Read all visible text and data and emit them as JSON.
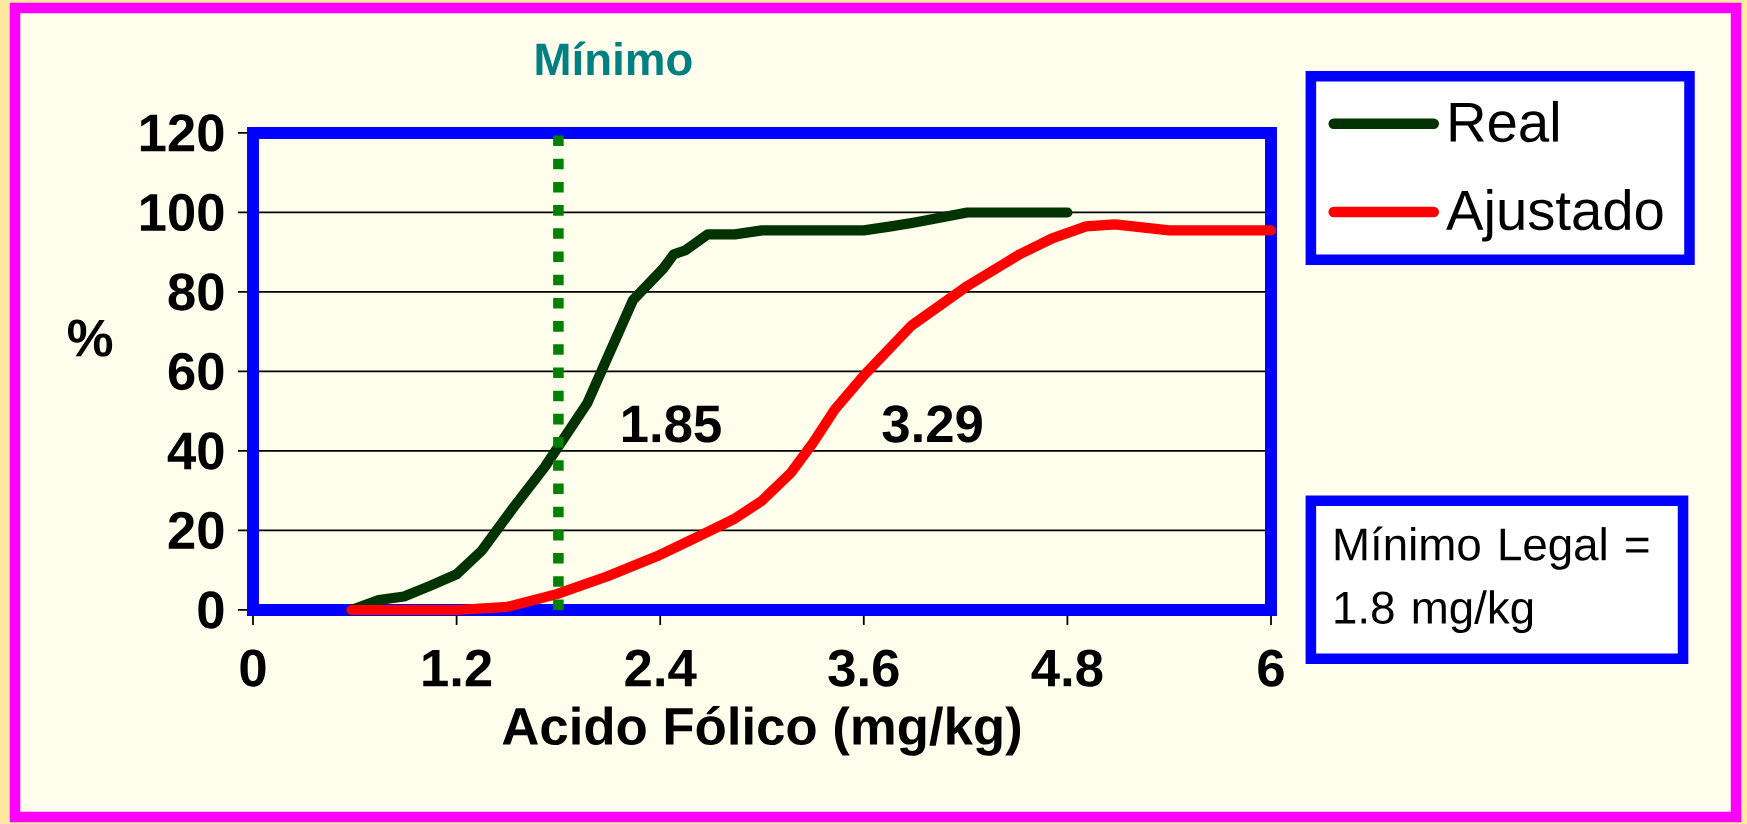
{
  "chart_data": {
    "type": "line",
    "xlabel": "Acido Fólico (mg/kg)",
    "ylabel": "%",
    "series": [
      {
        "name": "Real",
        "color": "#003300",
        "x": [
          0.58,
          0.74,
          0.89,
          1.04,
          1.2,
          1.35,
          1.53,
          1.72,
          1.97,
          2.24,
          2.42,
          2.48,
          2.55,
          2.68,
          2.84,
          3.0,
          3.6,
          3.76,
          3.9,
          4.21,
          4.8
        ],
        "values": [
          0,
          2.5,
          3.4,
          6,
          9,
          15,
          25.5,
          36,
          52,
          78,
          86,
          89.5,
          90.5,
          94.5,
          94.5,
          95.5,
          95.5,
          96.5,
          97.5,
          100,
          100
        ]
      },
      {
        "name": "Ajustado",
        "color": "#ff0000",
        "x": [
          0.58,
          1.2,
          1.5,
          1.79,
          2.09,
          2.38,
          2.65,
          2.84,
          3.0,
          3.17,
          3.3,
          3.43,
          3.6,
          3.88,
          4.21,
          4.52,
          4.71,
          4.91,
          5.08,
          5.4,
          6.0
        ],
        "values": [
          0,
          0,
          0.8,
          4,
          8.5,
          13.5,
          19,
          23,
          27.5,
          34.5,
          42,
          50.5,
          59,
          71.5,
          81.5,
          89.5,
          93.5,
          96.5,
          97,
          95.5,
          95.5
        ]
      }
    ],
    "xlim": [
      0,
      6
    ],
    "xticks": [
      0,
      1.2,
      2.4,
      3.6,
      4.8,
      6
    ],
    "ylim": [
      0,
      120
    ],
    "yticks": [
      0,
      20,
      40,
      60,
      80,
      100,
      120
    ],
    "grid": "y",
    "legend": "top right",
    "ref_lines": [
      {
        "axis": "x",
        "value": 1.8,
        "label": "Mínimo",
        "color": "#008000",
        "line_style": "dotted"
      }
    ],
    "annotations": [
      "1.85",
      "3.29",
      "Mínimo Legal = 1.8 mg/kg"
    ]
  }
}
